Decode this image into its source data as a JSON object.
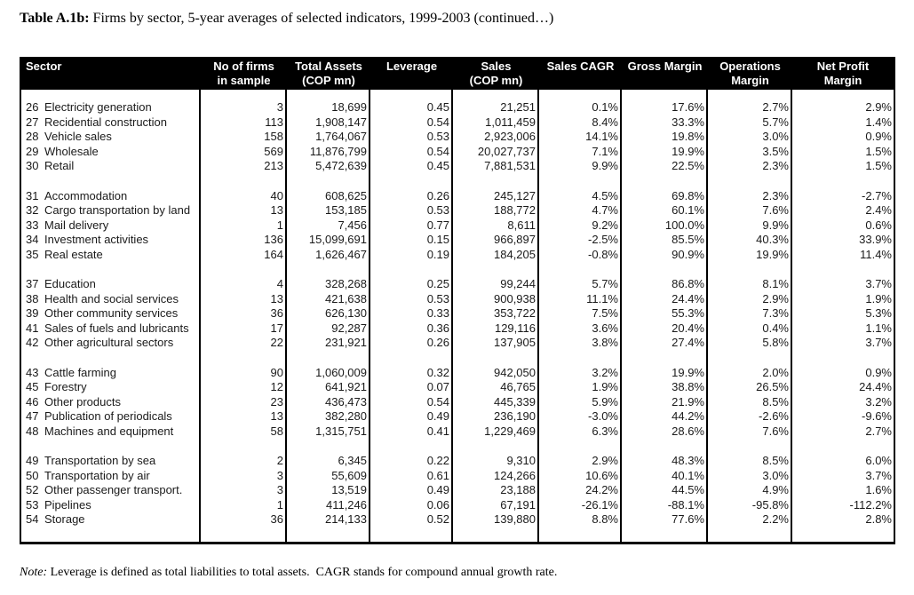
{
  "caption": {
    "label": "Table A.1b:",
    "text": "Firms by sector, 5-year averages of selected indicators, 1999-2003 (continued…)"
  },
  "note": {
    "label": "Note:",
    "text": "Leverage is defined as total liabilities to total assets.  CAGR stands for compound annual growth rate."
  },
  "colors": {
    "header_bg": "#000000",
    "header_text": "#ffffff",
    "body_text": "#1a1a1a",
    "border": "#000000"
  },
  "chart_data": {
    "type": "table",
    "title": "Firms by sector, 5-year averages of selected indicators, 1999-2003 (continued)",
    "columns": [
      {
        "line1": "Sector",
        "line2": ""
      },
      {
        "line1": "No of firms",
        "line2": "in sample"
      },
      {
        "line1": "Total Assets",
        "line2": "(COP mn)"
      },
      {
        "line1": "Leverage",
        "line2": ""
      },
      {
        "line1": "Sales",
        "line2": "(COP mn)"
      },
      {
        "line1": "Sales CAGR",
        "line2": ""
      },
      {
        "line1": "Gross Margin",
        "line2": ""
      },
      {
        "line1": "Operations",
        "line2": "Margin"
      },
      {
        "line1": "Net Profit",
        "line2": "Margin"
      }
    ],
    "groups": [
      {
        "rows": [
          {
            "code": "26",
            "name": "Electricity generation",
            "values": [
              "3",
              "18,699",
              "0.45",
              "21,251",
              "0.1%",
              "17.6%",
              "2.7%",
              "2.9%"
            ]
          },
          {
            "code": "27",
            "name": "Recidential construction",
            "values": [
              "113",
              "1,908,147",
              "0.54",
              "1,011,459",
              "8.4%",
              "33.3%",
              "5.7%",
              "1.4%"
            ]
          },
          {
            "code": "28",
            "name": "Vehicle sales",
            "values": [
              "158",
              "1,764,067",
              "0.53",
              "2,923,006",
              "14.1%",
              "19.8%",
              "3.0%",
              "0.9%"
            ]
          },
          {
            "code": "29",
            "name": "Wholesale",
            "values": [
              "569",
              "11,876,799",
              "0.54",
              "20,027,737",
              "7.1%",
              "19.9%",
              "3.5%",
              "1.5%"
            ]
          },
          {
            "code": "30",
            "name": "Retail",
            "values": [
              "213",
              "5,472,639",
              "0.45",
              "7,881,531",
              "9.9%",
              "22.5%",
              "2.3%",
              "1.5%"
            ]
          }
        ]
      },
      {
        "rows": [
          {
            "code": "31",
            "name": "Accommodation",
            "values": [
              "40",
              "608,625",
              "0.26",
              "245,127",
              "4.5%",
              "69.8%",
              "2.3%",
              "-2.7%"
            ]
          },
          {
            "code": "32",
            "name": "Cargo transportation by land",
            "values": [
              "13",
              "153,185",
              "0.53",
              "188,772",
              "4.7%",
              "60.1%",
              "7.6%",
              "2.4%"
            ]
          },
          {
            "code": "33",
            "name": "Mail delivery",
            "values": [
              "1",
              "7,456",
              "0.77",
              "8,611",
              "9.2%",
              "100.0%",
              "9.9%",
              "0.6%"
            ]
          },
          {
            "code": "34",
            "name": "Investment activities",
            "values": [
              "136",
              "15,099,691",
              "0.15",
              "966,897",
              "-2.5%",
              "85.5%",
              "40.3%",
              "33.9%"
            ]
          },
          {
            "code": "35",
            "name": "Real estate",
            "values": [
              "164",
              "1,626,467",
              "0.19",
              "184,205",
              "-0.8%",
              "90.9%",
              "19.9%",
              "11.4%"
            ]
          }
        ]
      },
      {
        "rows": [
          {
            "code": "37",
            "name": "Education",
            "values": [
              "4",
              "328,268",
              "0.25",
              "99,244",
              "5.7%",
              "86.8%",
              "8.1%",
              "3.7%"
            ]
          },
          {
            "code": "38",
            "name": "Health and social services",
            "values": [
              "13",
              "421,638",
              "0.53",
              "900,938",
              "11.1%",
              "24.4%",
              "2.9%",
              "1.9%"
            ]
          },
          {
            "code": "39",
            "name": "Other community services",
            "values": [
              "36",
              "626,130",
              "0.33",
              "353,722",
              "7.5%",
              "55.3%",
              "7.3%",
              "5.3%"
            ]
          },
          {
            "code": "41",
            "name": "Sales of fuels and lubricants",
            "values": [
              "17",
              "92,287",
              "0.36",
              "129,116",
              "3.6%",
              "20.4%",
              "0.4%",
              "1.1%"
            ]
          },
          {
            "code": "42",
            "name": "Other agricultural sectors",
            "values": [
              "22",
              "231,921",
              "0.26",
              "137,905",
              "3.8%",
              "27.4%",
              "5.8%",
              "3.7%"
            ]
          }
        ]
      },
      {
        "rows": [
          {
            "code": "43",
            "name": "Cattle farming",
            "values": [
              "90",
              "1,060,009",
              "0.32",
              "942,050",
              "3.2%",
              "19.9%",
              "2.0%",
              "0.9%"
            ]
          },
          {
            "code": "45",
            "name": "Forestry",
            "values": [
              "12",
              "641,921",
              "0.07",
              "46,765",
              "1.9%",
              "38.8%",
              "26.5%",
              "24.4%"
            ]
          },
          {
            "code": "46",
            "name": "Other products",
            "values": [
              "23",
              "436,473",
              "0.54",
              "445,339",
              "5.9%",
              "21.9%",
              "8.5%",
              "3.2%"
            ]
          },
          {
            "code": "47",
            "name": "Publication of periodicals",
            "values": [
              "13",
              "382,280",
              "0.49",
              "236,190",
              "-3.0%",
              "44.2%",
              "-2.6%",
              "-9.6%"
            ]
          },
          {
            "code": "48",
            "name": "Machines and equipment",
            "values": [
              "58",
              "1,315,751",
              "0.41",
              "1,229,469",
              "6.3%",
              "28.6%",
              "7.6%",
              "2.7%"
            ]
          }
        ]
      },
      {
        "rows": [
          {
            "code": "49",
            "name": "Transportation by sea",
            "values": [
              "2",
              "6,345",
              "0.22",
              "9,310",
              "2.9%",
              "48.3%",
              "8.5%",
              "6.0%"
            ]
          },
          {
            "code": "50",
            "name": "Transportation by air",
            "values": [
              "3",
              "55,609",
              "0.61",
              "124,266",
              "10.6%",
              "40.1%",
              "3.0%",
              "3.7%"
            ]
          },
          {
            "code": "52",
            "name": "Other passenger transport.",
            "values": [
              "3",
              "13,519",
              "0.49",
              "23,188",
              "24.2%",
              "44.5%",
              "4.9%",
              "1.6%"
            ]
          },
          {
            "code": "53",
            "name": "Pipelines",
            "values": [
              "1",
              "411,246",
              "0.06",
              "67,191",
              "-26.1%",
              "-88.1%",
              "-95.8%",
              "-112.2%"
            ]
          },
          {
            "code": "54",
            "name": "Storage",
            "values": [
              "36",
              "214,133",
              "0.52",
              "139,880",
              "8.8%",
              "77.6%",
              "2.2%",
              "2.8%"
            ]
          }
        ]
      }
    ]
  }
}
